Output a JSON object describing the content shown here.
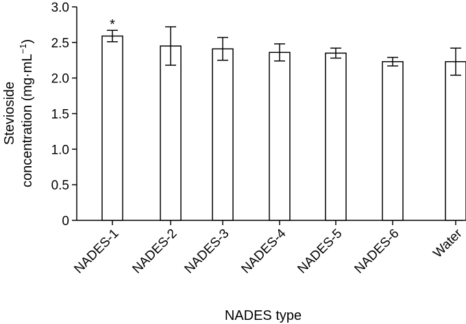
{
  "chart_data": {
    "type": "bar",
    "categories": [
      "NADES-1",
      "NADES-2",
      "NADES-3",
      "NADES-4",
      "NADES-5",
      "NADES-6",
      "Water"
    ],
    "values": [
      2.59,
      2.45,
      2.41,
      2.36,
      2.35,
      2.23,
      2.23
    ],
    "errors": [
      0.08,
      0.27,
      0.16,
      0.12,
      0.07,
      0.06,
      0.19
    ],
    "annotations": [
      "*",
      "",
      "",
      "",
      "",
      "",
      ""
    ],
    "xlabel": "NADES type",
    "ylabel_line1": "Stevioside",
    "ylabel_line2": "concentration (mg·mL",
    "ylabel_unit_exp": "−1",
    "ylabel_close": ")",
    "yticks": [
      "0",
      "0.5",
      "1.0",
      "1.5",
      "2.0",
      "2.5",
      "3.0"
    ],
    "ylim": [
      0,
      3.0
    ],
    "grid": false,
    "bar_fill": "#ffffff",
    "bar_stroke": "#000000"
  }
}
